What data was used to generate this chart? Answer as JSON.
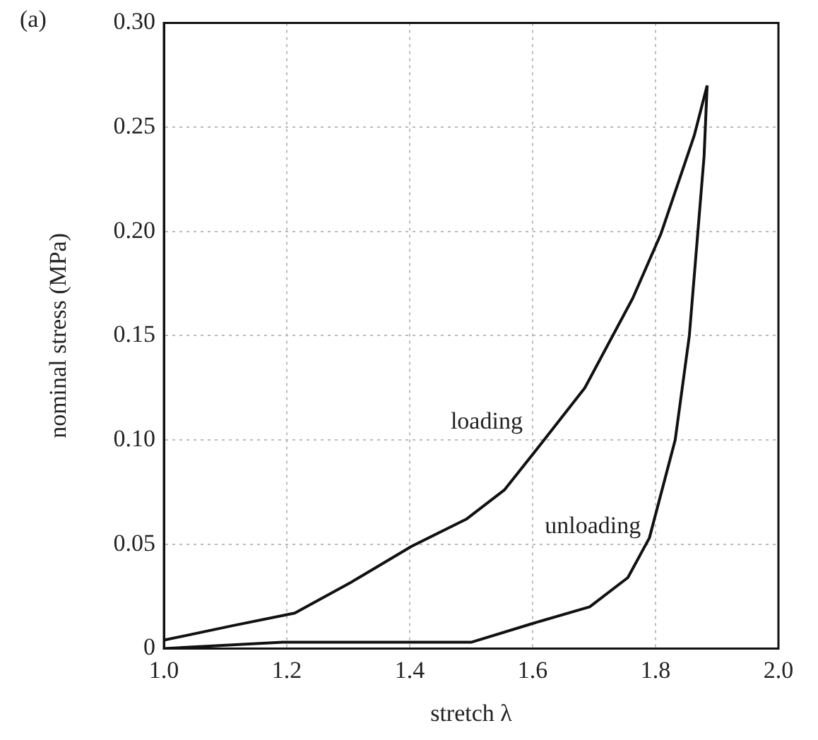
{
  "chart_data": {
    "type": "line",
    "xlabel": "stretch λ",
    "ylabel": "nominal stress (MPa)",
    "xlim": [
      1.0,
      2.0
    ],
    "ylim": [
      0,
      0.3
    ],
    "xticks": [
      {
        "value": 1.0,
        "label": "1.0"
      },
      {
        "value": 1.2,
        "label": "1.2"
      },
      {
        "value": 1.4,
        "label": "1.4"
      },
      {
        "value": 1.6,
        "label": "1.6"
      },
      {
        "value": 1.8,
        "label": "1.8"
      },
      {
        "value": 2.0,
        "label": "2.0"
      }
    ],
    "yticks": [
      0,
      0.05,
      {
        "value": 0.1,
        "label": "0.10"
      },
      0.15,
      {
        "value": 0.2,
        "label": "0.20"
      },
      0.25,
      {
        "value": 0.3,
        "label": "0.30"
      }
    ],
    "grid": true,
    "legend": false,
    "marker": "none",
    "line_style": "solid",
    "series": [
      {
        "name": "loading",
        "color": "#111111",
        "x": [
          1.0,
          1.113,
          1.213,
          1.306,
          1.403,
          1.492,
          1.554,
          1.616,
          1.685,
          1.763,
          1.809,
          1.863,
          1.884
        ],
        "values": [
          0.004,
          0.011,
          0.017,
          0.032,
          0.049,
          0.062,
          0.076,
          0.099,
          0.125,
          0.168,
          0.199,
          0.246,
          0.27
        ]
      },
      {
        "name": "unloading",
        "color": "#111111",
        "x": [
          1.884,
          1.879,
          1.855,
          1.832,
          1.79,
          1.755,
          1.693,
          1.6,
          1.5,
          1.4,
          1.283,
          1.193,
          1.0
        ],
        "values": [
          0.27,
          0.236,
          0.15,
          0.1,
          0.053,
          0.034,
          0.02,
          0.012,
          0.003,
          0.003,
          0.003,
          0.003,
          0.0
        ]
      }
    ],
    "annotations": [
      "(a)"
    ]
  }
}
